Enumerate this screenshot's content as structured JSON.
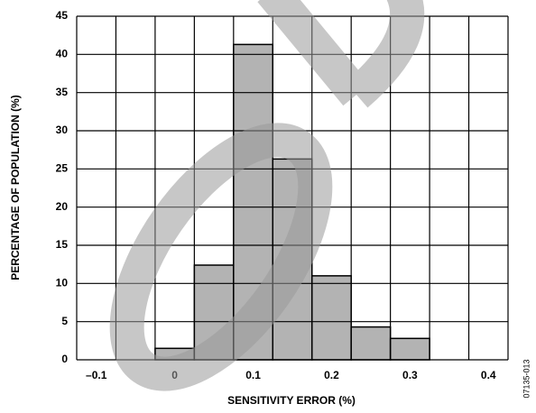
{
  "chart_data": {
    "type": "histogram",
    "x_label": "SENSITIVITY ERROR (%)",
    "y_label": "PERCENTAGE OF POPULATION (%)",
    "figure_code": "07135-013",
    "bins": [
      -0.025,
      0.025,
      0.075,
      0.125,
      0.175,
      0.225,
      0.275,
      0.325
    ],
    "values": [
      1.5,
      12.4,
      41.3,
      26.3,
      11,
      4.3,
      2.8
    ],
    "color": "#b3b3b3",
    "xlim": [
      -0.125,
      0.425
    ],
    "xticks": [
      {
        "value": -0.1,
        "label": "–0.1"
      },
      0,
      0.1,
      0.2,
      0.3,
      0.4
    ],
    "xgrid": [
      -0.125,
      -0.075,
      -0.025,
      0.025,
      0.075,
      0.125,
      0.175,
      0.225,
      0.275,
      0.325,
      0.375,
      0.425
    ],
    "ylim": [
      0,
      45
    ],
    "yticks": [
      0,
      5,
      10,
      15,
      20,
      25,
      30,
      35,
      40,
      45
    ],
    "grid": true
  }
}
